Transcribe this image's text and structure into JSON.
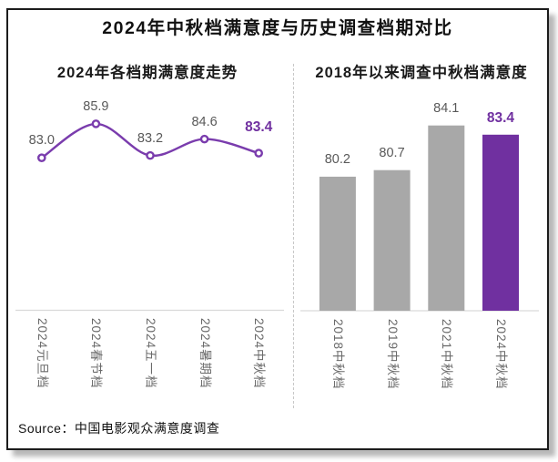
{
  "main_title": "2024年中秋档满意度与历史调查档期对比",
  "source": "Source：中国电影观众满意度调查",
  "colors": {
    "accent_purple": "#7030A0",
    "line_purple": "#7A3CAD",
    "bar_gray": "#A8A8A8",
    "value_label_gray": "#595959",
    "axis_label_gray": "#6A6A6A",
    "axis_line_gray": "#D9D9D9"
  },
  "chart_data": [
    {
      "type": "line",
      "title": "2024年各档期满意度走势",
      "categories": [
        "2024元旦档",
        "2024春节档",
        "2024五一档",
        "2024暑期档",
        "2024中秋档"
      ],
      "values": [
        83.0,
        85.9,
        83.2,
        84.6,
        83.4
      ],
      "value_labels": [
        "83.0",
        "85.9",
        "83.2",
        "84.6",
        "83.4"
      ],
      "highlight_index": 4,
      "ylim": [
        70,
        88.3
      ],
      "grid": false,
      "legend": "none",
      "marker": "open-circle",
      "smooth": true
    },
    {
      "type": "bar",
      "title": "2018年以来调查中秋档满意度",
      "categories": [
        "2018中秋档",
        "2019中秋档",
        "2021中秋档",
        "2024中秋档"
      ],
      "values": [
        80.2,
        80.7,
        84.1,
        83.4
      ],
      "value_labels": [
        "80.2",
        "80.7",
        "84.1",
        "83.4"
      ],
      "highlight_index": 3,
      "ylim": [
        70,
        86.3
      ],
      "grid": false,
      "legend": "none"
    }
  ]
}
